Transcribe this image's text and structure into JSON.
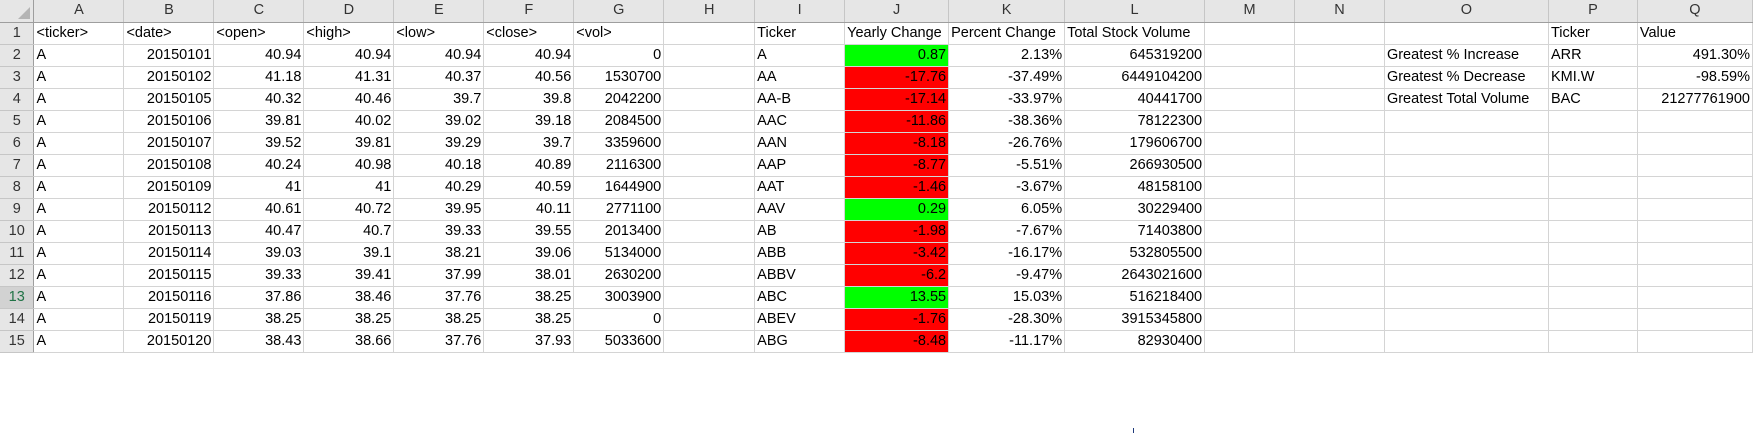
{
  "spreadsheet": {
    "columns": [
      "A",
      "B",
      "C",
      "D",
      "E",
      "F",
      "G",
      "H",
      "I",
      "J",
      "K",
      "L",
      "M",
      "N",
      "O",
      "P",
      "Q"
    ],
    "active_row": 13,
    "colors": {
      "positive_fill": "#00ff00",
      "negative_fill": "#ff0000"
    },
    "rows": [
      {
        "num": "1",
        "cells": [
          "<ticker>",
          "<date>",
          "<open>",
          "<high>",
          "<low>",
          "<close>",
          "<vol>",
          "",
          "Ticker",
          "Yearly Change",
          "Percent Change",
          "Total Stock Volume",
          "",
          "",
          "",
          "Ticker",
          "Value"
        ]
      },
      {
        "num": "2",
        "cells": [
          "A",
          "20150101",
          "40.94",
          "40.94",
          "40.94",
          "40.94",
          "0",
          "",
          "A",
          "0.87",
          "2.13%",
          "645319200",
          "",
          "",
          "Greatest % Increase",
          "ARR",
          "491.30%"
        ]
      },
      {
        "num": "3",
        "cells": [
          "A",
          "20150102",
          "41.18",
          "41.31",
          "40.37",
          "40.56",
          "1530700",
          "",
          "AA",
          "-17.76",
          "-37.49%",
          "6449104200",
          "",
          "",
          "Greatest % Decrease",
          "KMI.W",
          "-98.59%"
        ]
      },
      {
        "num": "4",
        "cells": [
          "A",
          "20150105",
          "40.32",
          "40.46",
          "39.7",
          "39.8",
          "2042200",
          "",
          "AA-B",
          "-17.14",
          "-33.97%",
          "40441700",
          "",
          "",
          "Greatest Total Volume",
          "BAC",
          "21277761900"
        ]
      },
      {
        "num": "5",
        "cells": [
          "A",
          "20150106",
          "39.81",
          "40.02",
          "39.02",
          "39.18",
          "2084500",
          "",
          "AAC",
          "-11.86",
          "-38.36%",
          "78122300",
          "",
          "",
          "",
          "",
          ""
        ]
      },
      {
        "num": "6",
        "cells": [
          "A",
          "20150107",
          "39.52",
          "39.81",
          "39.29",
          "39.7",
          "3359600",
          "",
          "AAN",
          "-8.18",
          "-26.76%",
          "179606700",
          "",
          "",
          "",
          "",
          ""
        ]
      },
      {
        "num": "7",
        "cells": [
          "A",
          "20150108",
          "40.24",
          "40.98",
          "40.18",
          "40.89",
          "2116300",
          "",
          "AAP",
          "-8.77",
          "-5.51%",
          "266930500",
          "",
          "",
          "",
          "",
          ""
        ]
      },
      {
        "num": "8",
        "cells": [
          "A",
          "20150109",
          "41",
          "41",
          "40.29",
          "40.59",
          "1644900",
          "",
          "AAT",
          "-1.46",
          "-3.67%",
          "48158100",
          "",
          "",
          "",
          "",
          ""
        ]
      },
      {
        "num": "9",
        "cells": [
          "A",
          "20150112",
          "40.61",
          "40.72",
          "39.95",
          "40.11",
          "2771100",
          "",
          "AAV",
          "0.29",
          "6.05%",
          "30229400",
          "",
          "",
          "",
          "",
          ""
        ]
      },
      {
        "num": "10",
        "cells": [
          "A",
          "20150113",
          "40.47",
          "40.7",
          "39.33",
          "39.55",
          "2013400",
          "",
          "AB",
          "-1.98",
          "-7.67%",
          "71403800",
          "",
          "",
          "",
          "",
          ""
        ]
      },
      {
        "num": "11",
        "cells": [
          "A",
          "20150114",
          "39.03",
          "39.1",
          "38.21",
          "39.06",
          "5134000",
          "",
          "ABB",
          "-3.42",
          "-16.17%",
          "532805500",
          "",
          "",
          "",
          "",
          ""
        ]
      },
      {
        "num": "12",
        "cells": [
          "A",
          "20150115",
          "39.33",
          "39.41",
          "37.99",
          "38.01",
          "2630200",
          "",
          "ABBV",
          "-6.2",
          "-9.47%",
          "2643021600",
          "",
          "",
          "",
          "",
          ""
        ]
      },
      {
        "num": "13",
        "cells": [
          "A",
          "20150116",
          "37.86",
          "38.46",
          "37.76",
          "38.25",
          "3003900",
          "",
          "ABC",
          "13.55",
          "15.03%",
          "516218400",
          "",
          "",
          "",
          "",
          ""
        ]
      },
      {
        "num": "14",
        "cells": [
          "A",
          "20150119",
          "38.25",
          "38.25",
          "38.25",
          "38.25",
          "0",
          "",
          "ABEV",
          "-1.76",
          "-28.30%",
          "3915345800",
          "",
          "",
          "",
          "",
          ""
        ]
      },
      {
        "num": "15",
        "cells": [
          "A",
          "20150120",
          "38.43",
          "38.66",
          "37.76",
          "37.93",
          "5033600",
          "",
          "ABG",
          "-8.48",
          "-11.17%",
          "82930400",
          "",
          "",
          "",
          "",
          ""
        ]
      }
    ]
  }
}
